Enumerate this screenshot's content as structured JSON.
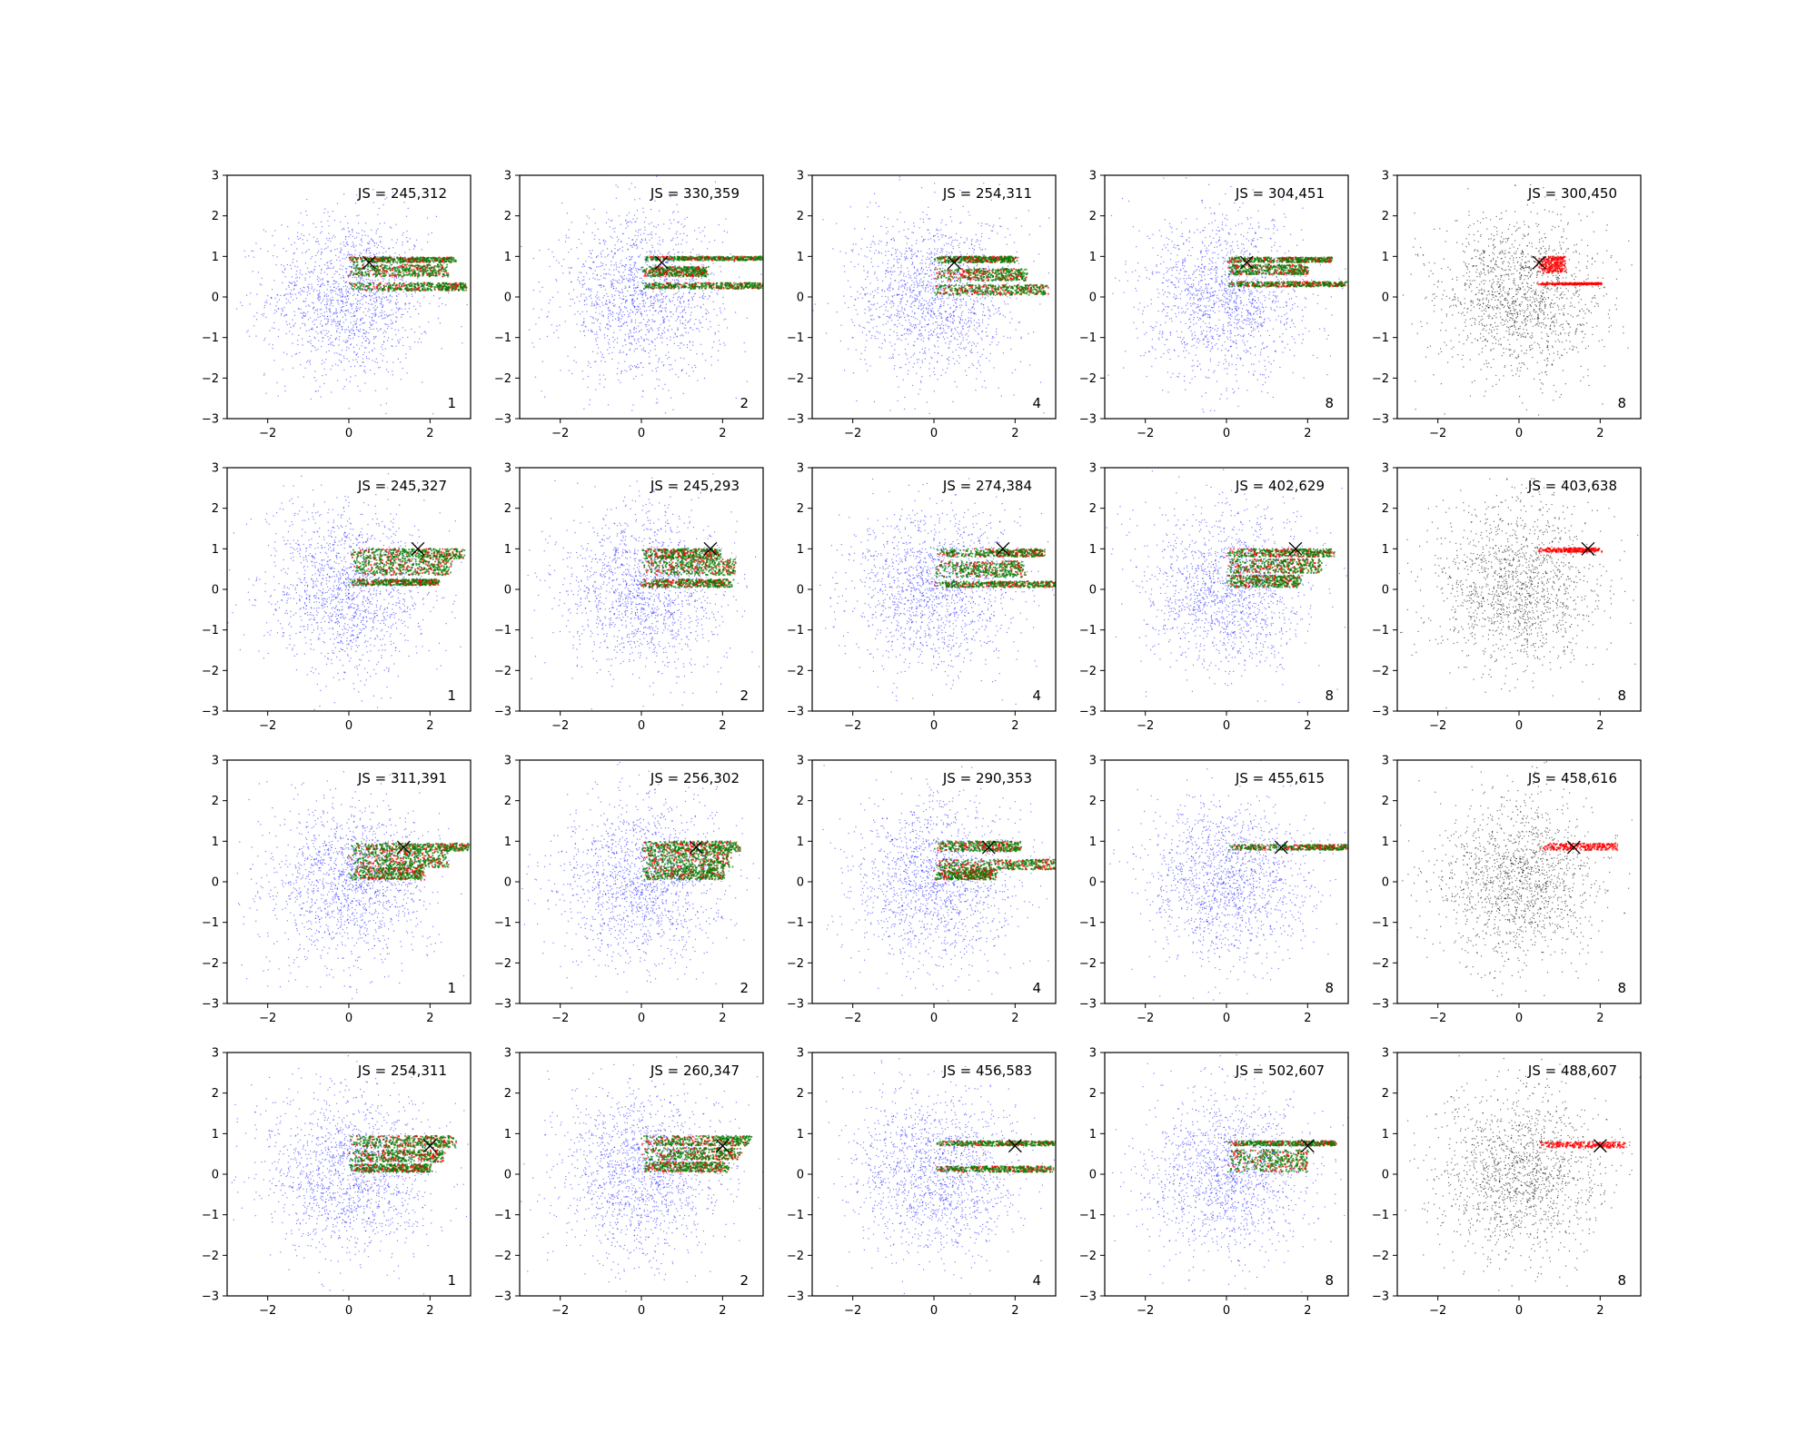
{
  "colors": {
    "blue": "#0000ff",
    "black": "#000000",
    "red": "#ff0000",
    "green": "#008000",
    "background": "#ffffff"
  },
  "chart_data": {
    "type": "scatter",
    "layout": {
      "rows": 4,
      "cols": 5
    },
    "axis": {
      "xlim": [
        -3,
        3
      ],
      "ylim": [
        -3,
        3
      ],
      "xticks": [
        -2,
        0,
        2
      ],
      "yticks": [
        -3,
        -2,
        -1,
        0,
        1,
        2,
        3
      ],
      "grid": false
    },
    "panels": [
      {
        "row": 1,
        "col": 1,
        "js_label": "JS = 245,312",
        "count_label": "1",
        "cloud": "blue",
        "marker": [
          0.5,
          0.85
        ],
        "bands": [
          [
            0.85,
            0.98,
            2.6
          ],
          [
            0.5,
            0.8,
            2.4
          ],
          [
            0.15,
            0.35,
            2.9
          ]
        ],
        "overlay": "green"
      },
      {
        "row": 1,
        "col": 2,
        "js_label": "JS = 330,359",
        "count_label": "2",
        "cloud": "blue",
        "marker": [
          0.5,
          0.85
        ],
        "bands": [
          [
            0.9,
            1.0,
            3.0
          ],
          [
            0.5,
            0.75,
            1.6
          ],
          [
            0.2,
            0.35,
            3.0
          ]
        ],
        "overlay": "green"
      },
      {
        "row": 1,
        "col": 3,
        "js_label": "JS = 254,311",
        "count_label": "4",
        "cloud": "blue",
        "marker": [
          0.5,
          0.85
        ],
        "bands": [
          [
            0.85,
            1.0,
            2.0
          ],
          [
            0.4,
            0.7,
            2.3
          ],
          [
            0.05,
            0.3,
            2.8
          ]
        ],
        "overlay": "green"
      },
      {
        "row": 1,
        "col": 4,
        "js_label": "JS = 304,451",
        "count_label": "8",
        "cloud": "blue",
        "marker": [
          0.5,
          0.85
        ],
        "bands": [
          [
            0.85,
            0.98,
            2.6
          ],
          [
            0.55,
            0.8,
            2.0
          ],
          [
            0.25,
            0.38,
            2.9
          ]
        ],
        "overlay": "green"
      },
      {
        "row": 1,
        "col": 5,
        "js_label": "JS = 300,450",
        "count_label": "8",
        "cloud": "black",
        "marker": [
          0.5,
          0.85
        ],
        "bands": [
          [
            0.6,
            1.0,
            1.1
          ],
          [
            0.3,
            0.35,
            2.0
          ]
        ],
        "overlay": "red"
      },
      {
        "row": 2,
        "col": 1,
        "js_label": "JS = 245,327",
        "count_label": "1",
        "cloud": "blue",
        "marker": [
          1.7,
          1.0
        ],
        "bands": [
          [
            0.75,
            1.0,
            2.8
          ],
          [
            0.35,
            0.75,
            2.5
          ],
          [
            0.1,
            0.25,
            2.2
          ]
        ],
        "overlay": "green"
      },
      {
        "row": 2,
        "col": 2,
        "js_label": "JS = 245,293",
        "count_label": "2",
        "cloud": "blue",
        "marker": [
          1.7,
          1.0
        ],
        "bands": [
          [
            0.75,
            1.0,
            1.9
          ],
          [
            0.35,
            0.75,
            2.3
          ],
          [
            0.05,
            0.25,
            2.2
          ]
        ],
        "overlay": "green"
      },
      {
        "row": 2,
        "col": 3,
        "js_label": "JS = 274,384",
        "count_label": "4",
        "cloud": "blue",
        "marker": [
          1.7,
          1.0
        ],
        "bands": [
          [
            0.8,
            1.0,
            2.7
          ],
          [
            0.3,
            0.7,
            2.2
          ],
          [
            0.05,
            0.2,
            3.0
          ]
        ],
        "overlay": "green"
      },
      {
        "row": 2,
        "col": 4,
        "js_label": "JS = 402,629",
        "count_label": "8",
        "cloud": "blue",
        "marker": [
          1.7,
          1.0
        ],
        "bands": [
          [
            0.8,
            1.0,
            2.6
          ],
          [
            0.4,
            0.75,
            2.3
          ],
          [
            0.05,
            0.35,
            1.8
          ]
        ],
        "overlay": "green"
      },
      {
        "row": 2,
        "col": 5,
        "js_label": "JS = 403,638",
        "count_label": "8",
        "cloud": "black",
        "marker": [
          1.7,
          1.0
        ],
        "bands": [
          [
            0.92,
            1.02,
            2.0
          ]
        ],
        "overlay": "red"
      },
      {
        "row": 3,
        "col": 1,
        "js_label": "JS = 311,391",
        "count_label": "1",
        "cloud": "blue",
        "marker": [
          1.35,
          0.85
        ],
        "bands": [
          [
            0.75,
            0.95,
            3.0
          ],
          [
            0.35,
            0.75,
            2.4
          ],
          [
            0.05,
            0.35,
            1.8
          ]
        ],
        "overlay": "green"
      },
      {
        "row": 3,
        "col": 2,
        "js_label": "JS = 256,302",
        "count_label": "2",
        "cloud": "blue",
        "marker": [
          1.35,
          0.85
        ],
        "bands": [
          [
            0.75,
            1.0,
            2.4
          ],
          [
            0.35,
            0.75,
            2.2
          ],
          [
            0.05,
            0.35,
            2.0
          ]
        ],
        "overlay": "green"
      },
      {
        "row": 3,
        "col": 3,
        "js_label": "JS = 290,353",
        "count_label": "4",
        "cloud": "blue",
        "marker": [
          1.35,
          0.85
        ],
        "bands": [
          [
            0.75,
            1.0,
            2.1
          ],
          [
            0.3,
            0.55,
            3.0
          ],
          [
            0.05,
            0.3,
            1.5
          ]
        ],
        "overlay": "green"
      },
      {
        "row": 3,
        "col": 4,
        "js_label": "JS = 455,615",
        "count_label": "8",
        "cloud": "blue",
        "marker": [
          1.35,
          0.85
        ],
        "bands": [
          [
            0.78,
            0.92,
            3.0
          ]
        ],
        "overlay": "green"
      },
      {
        "row": 3,
        "col": 5,
        "js_label": "JS = 458,616",
        "count_label": "8",
        "cloud": "black",
        "marker": [
          1.35,
          0.85
        ],
        "bands": [
          [
            0.78,
            0.95,
            2.4
          ]
        ],
        "overlay": "red"
      },
      {
        "row": 4,
        "col": 1,
        "js_label": "JS = 254,311",
        "count_label": "1",
        "cloud": "blue",
        "marker": [
          2.0,
          0.7
        ],
        "bands": [
          [
            0.65,
            0.95,
            2.6
          ],
          [
            0.3,
            0.6,
            2.3
          ],
          [
            0.05,
            0.25,
            2.0
          ]
        ],
        "overlay": "green"
      },
      {
        "row": 4,
        "col": 2,
        "js_label": "JS = 260,347",
        "count_label": "2",
        "cloud": "blue",
        "marker": [
          2.0,
          0.7
        ],
        "bands": [
          [
            0.7,
            0.95,
            2.7
          ],
          [
            0.35,
            0.65,
            2.4
          ],
          [
            0.05,
            0.3,
            2.1
          ]
        ],
        "overlay": "green"
      },
      {
        "row": 4,
        "col": 3,
        "js_label": "JS = 456,583",
        "count_label": "4",
        "cloud": "blue",
        "marker": [
          2.0,
          0.7
        ],
        "bands": [
          [
            0.7,
            0.82,
            3.0
          ],
          [
            0.05,
            0.2,
            2.9
          ]
        ],
        "overlay": "green"
      },
      {
        "row": 4,
        "col": 4,
        "js_label": "JS = 502,607",
        "count_label": "8",
        "cloud": "blue",
        "marker": [
          2.0,
          0.7
        ],
        "bands": [
          [
            0.7,
            0.82,
            2.7
          ],
          [
            0.05,
            0.6,
            2.0
          ]
        ],
        "overlay": "green"
      },
      {
        "row": 4,
        "col": 5,
        "js_label": "JS = 488,607",
        "count_label": "8",
        "cloud": "black",
        "marker": [
          2.0,
          0.7
        ],
        "bands": [
          [
            0.65,
            0.8,
            2.6
          ]
        ],
        "overlay": "red"
      }
    ]
  }
}
